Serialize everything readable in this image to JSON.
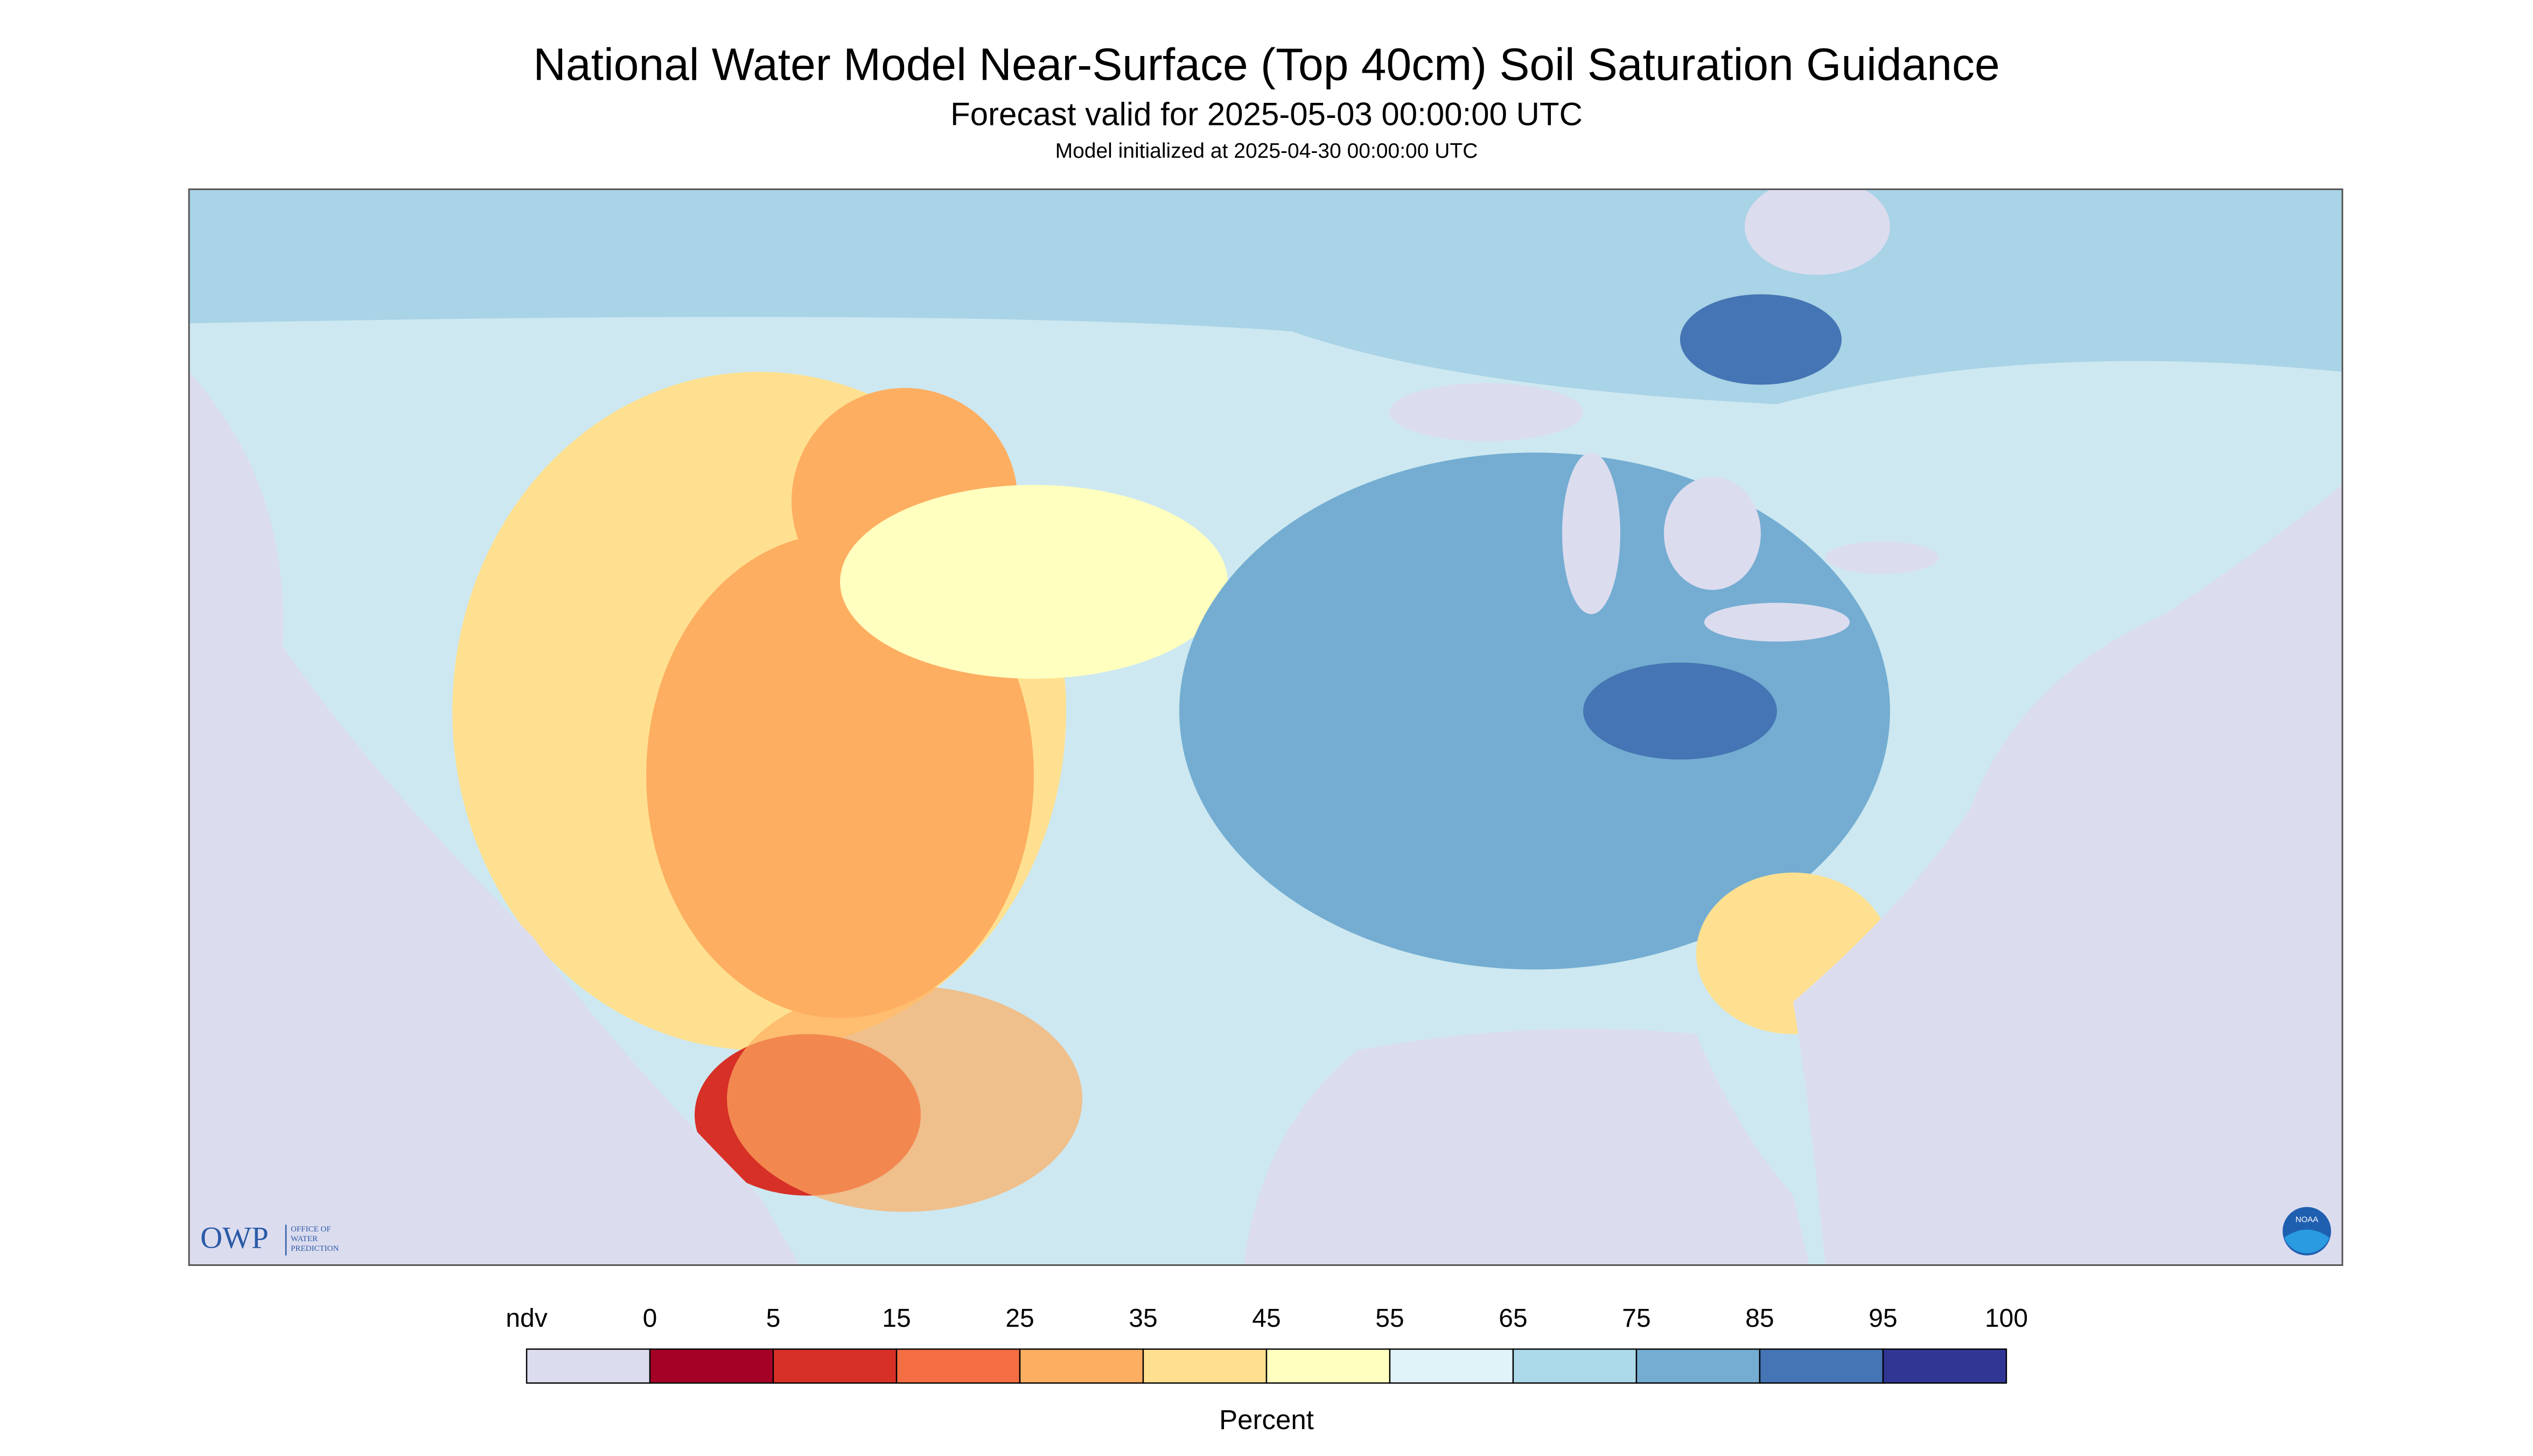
{
  "title": "National Water Model Near-Surface (Top 40cm) Soil Saturation Guidance",
  "subtitle": "Forecast valid for 2025-05-03 00:00:00 UTC",
  "note": "Model initialized at 2025-04-30 00:00:00 UTC",
  "logo": {
    "name": "OWP",
    "lines": [
      "OFFICE OF",
      "WATER",
      "PREDICTION"
    ]
  },
  "noaa_logo": "NOAA",
  "legend": {
    "ticks": [
      "ndv",
      0,
      5,
      15,
      25,
      35,
      45,
      55,
      65,
      75,
      85,
      95,
      100
    ],
    "colors": [
      "#dcdcef",
      "#a50026",
      "#d73027",
      "#f46d43",
      "#fdae61",
      "#fee090",
      "#ffffbf",
      "#e0f3f8",
      "#abd9e9",
      "#74add1",
      "#4575b4",
      "#313695"
    ],
    "label": "Percent"
  }
}
